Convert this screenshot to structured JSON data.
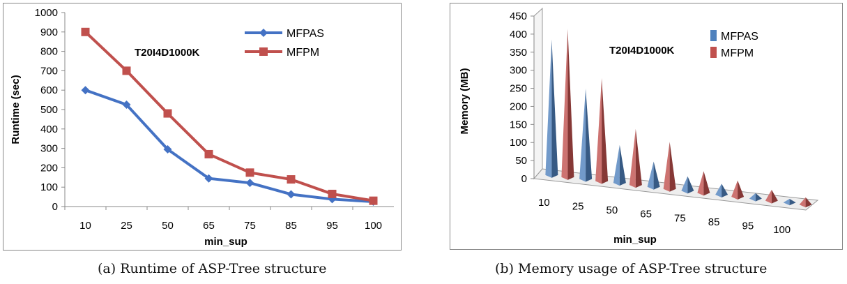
{
  "chart_data": [
    {
      "type": "line",
      "title": "T20I4D1000K",
      "xlabel": "min_sup",
      "ylabel": "Runtime (sec)",
      "categories": [
        "10",
        "25",
        "50",
        "65",
        "75",
        "85",
        "95",
        "100"
      ],
      "ylim": [
        0,
        1000
      ],
      "yticks": [
        "0",
        "100",
        "200",
        "300",
        "400",
        "500",
        "600",
        "700",
        "800",
        "900",
        "1000"
      ],
      "grid": false,
      "legend_position": "top-right",
      "series": [
        {
          "name": "MFPAS",
          "color": "#4472C4",
          "marker": "diamond",
          "values": [
            600,
            525,
            295,
            145,
            122,
            63,
            38,
            25
          ]
        },
        {
          "name": "MFPM",
          "color": "#C0504D",
          "marker": "square",
          "values": [
            900,
            700,
            480,
            270,
            175,
            140,
            65,
            30
          ]
        }
      ]
    },
    {
      "type": "bar",
      "style": "3d-cone",
      "title": "T20I4D1000K",
      "xlabel": "min_sup",
      "ylabel": "Memory (MB)",
      "categories": [
        "10",
        "25",
        "50",
        "65",
        "75",
        "85",
        "95",
        "100"
      ],
      "ylim": [
        0,
        450
      ],
      "yticks": [
        "0",
        "50",
        "100",
        "150",
        "200",
        "250",
        "300",
        "350",
        "400",
        "450"
      ],
      "grid": false,
      "legend_position": "top-right",
      "series": [
        {
          "name": "MFPAS",
          "color": "#4F81BD",
          "values": [
            375,
            250,
            105,
            70,
            40,
            30,
            15,
            10
          ]
        },
        {
          "name": "MFPM",
          "color": "#C0504D",
          "values": [
            410,
            285,
            155,
            130,
            60,
            45,
            30,
            20
          ]
        }
      ]
    }
  ],
  "captions": {
    "a": "(a) Runtime of ASP-Tree structure",
    "b": "(b) Memory usage of ASP-Tree structure"
  }
}
